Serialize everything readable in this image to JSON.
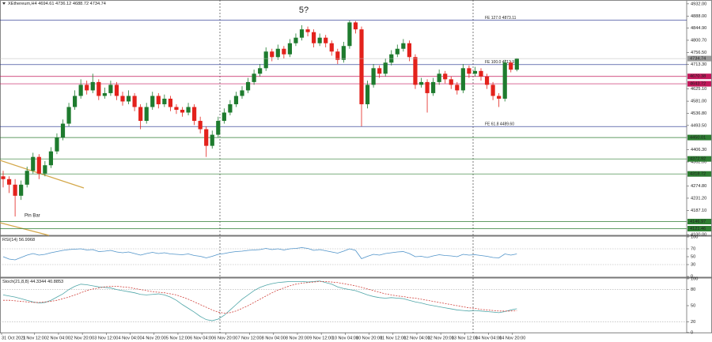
{
  "chart_data": [
    {
      "type": "candlestick",
      "title": "XEthereum,H4",
      "ylim": [
        4100,
        4943
      ],
      "yticks": [
        {
          "value": 4932,
          "label": "4932.00"
        },
        {
          "value": 4888,
          "label": "4888.00"
        },
        {
          "value": 4844.9,
          "label": "4844.90"
        },
        {
          "value": 4800.7,
          "label": "4800.70"
        },
        {
          "value": 4756.5,
          "label": "4756.50"
        },
        {
          "value": 4713.3,
          "label": "4713.30"
        },
        {
          "value": 4625.1,
          "label": "4625.10"
        },
        {
          "value": 4581,
          "label": "4581.00"
        },
        {
          "value": 4536.8,
          "label": "4536.80"
        },
        {
          "value": 4493.5,
          "label": "4493.50"
        },
        {
          "value": 4406.3,
          "label": "4406.30"
        },
        {
          "value": 4362,
          "label": "4362.00"
        },
        {
          "value": 4274.8,
          "label": "4274.80"
        },
        {
          "value": 4231.2,
          "label": "4231.20"
        },
        {
          "value": 4187.1,
          "label": "4187.10"
        },
        {
          "value": 4100,
          "label": "4100.00"
        }
      ],
      "up_color": "#1e7b2e",
      "down_color": "#e3221c",
      "open": [
        4310,
        4300,
        4280,
        4240,
        4280,
        4330,
        4380,
        4320,
        4350,
        4400,
        4450,
        4500,
        4560,
        4600,
        4640,
        4620,
        4650,
        4600,
        4610,
        4640,
        4600,
        4580,
        4600,
        4560,
        4510,
        4560,
        4600,
        4570,
        4590,
        4560,
        4550,
        4540,
        4560,
        4510,
        4480,
        4420,
        4460,
        4510,
        4540,
        4570,
        4600,
        4620,
        4650,
        4680,
        4700,
        4760,
        4740,
        4770,
        4750,
        4790,
        4810,
        4840,
        4830,
        4790,
        4810,
        4790,
        4760,
        4730,
        4780,
        4865,
        4840,
        4570,
        4640,
        4700,
        4680,
        4720,
        4750,
        4770,
        4790,
        4740,
        4640,
        4650,
        4610,
        4650,
        4680,
        4660,
        4640,
        4620,
        4700,
        4680,
        4690,
        4670,
        4640,
        4600,
        4590,
        4720,
        4694.61
      ],
      "high": [
        4330,
        4310,
        4300,
        4295,
        4345,
        4395,
        4390,
        4365,
        4415,
        4465,
        4515,
        4575,
        4620,
        4660,
        4655,
        4680,
        4660,
        4630,
        4655,
        4650,
        4615,
        4620,
        4610,
        4570,
        4575,
        4615,
        4610,
        4605,
        4600,
        4570,
        4560,
        4575,
        4570,
        4525,
        4490,
        4475,
        4525,
        4555,
        4585,
        4615,
        4635,
        4665,
        4695,
        4715,
        4775,
        4770,
        4785,
        4780,
        4805,
        4825,
        4855,
        4850,
        4840,
        4825,
        4820,
        4800,
        4770,
        4795,
        4872,
        4870,
        4850,
        4655,
        4715,
        4710,
        4735,
        4765,
        4785,
        4805,
        4800,
        4750,
        4665,
        4660,
        4665,
        4695,
        4690,
        4670,
        4650,
        4715,
        4710,
        4705,
        4700,
        4680,
        4650,
        4610,
        4730,
        4725,
        4736.12
      ],
      "low": [
        4270,
        4250,
        4165,
        4225,
        4270,
        4320,
        4300,
        4310,
        4340,
        4390,
        4440,
        4490,
        4550,
        4590,
        4605,
        4610,
        4585,
        4590,
        4600,
        4585,
        4565,
        4570,
        4545,
        4480,
        4500,
        4550,
        4555,
        4560,
        4545,
        4535,
        4525,
        4530,
        4495,
        4465,
        4380,
        4410,
        4450,
        4500,
        4530,
        4560,
        4590,
        4610,
        4640,
        4670,
        4690,
        4725,
        4730,
        4735,
        4740,
        4780,
        4800,
        4815,
        4775,
        4780,
        4775,
        4745,
        4715,
        4720,
        4770,
        4825,
        4490,
        4555,
        4630,
        4665,
        4670,
        4710,
        4740,
        4760,
        4725,
        4625,
        4630,
        4540,
        4600,
        4640,
        4645,
        4625,
        4605,
        4610,
        4665,
        4670,
        4655,
        4625,
        4585,
        4560,
        4580,
        4685,
        4688.72
      ],
      "close": [
        4300,
        4280,
        4240,
        4280,
        4330,
        4380,
        4320,
        4350,
        4400,
        4450,
        4500,
        4560,
        4600,
        4640,
        4620,
        4650,
        4600,
        4610,
        4640,
        4600,
        4580,
        4600,
        4560,
        4510,
        4560,
        4600,
        4570,
        4590,
        4560,
        4550,
        4540,
        4560,
        4510,
        4480,
        4420,
        4460,
        4510,
        4540,
        4570,
        4600,
        4620,
        4650,
        4680,
        4700,
        4760,
        4740,
        4770,
        4750,
        4790,
        4810,
        4840,
        4830,
        4790,
        4810,
        4790,
        4760,
        4730,
        4780,
        4865,
        4840,
        4570,
        4640,
        4700,
        4680,
        4720,
        4750,
        4770,
        4790,
        4740,
        4640,
        4650,
        4610,
        4650,
        4680,
        4660,
        4640,
        4620,
        4700,
        4680,
        4690,
        4670,
        4640,
        4600,
        4590,
        4720,
        4694.61,
        4734.74
      ],
      "fib_levels": [
        {
          "value": 4873.11,
          "label": "FE 127.0 4873.11",
          "color": "#1a2a8a"
        },
        {
          "value": 4712.91,
          "label": "FE 100.0 4712.91",
          "color": "#1a2a8a"
        },
        {
          "value": 4489.6,
          "label": "FE 61.8 4489.60",
          "color": "#1a2a8a"
        }
      ],
      "price_levels": [
        {
          "value": 4670.38,
          "color": "#c2185b"
        },
        {
          "value": 4643.72,
          "color": "#c2185b"
        },
        {
          "value": 4450.01,
          "color": "#2e7d32"
        },
        {
          "value": 4372.92,
          "color": "#2e7d32"
        },
        {
          "value": 4318.72,
          "color": "#2e7d32"
        },
        {
          "value": 4146.97,
          "color": "#2e7d32"
        },
        {
          "value": 4121.46,
          "color": "#2e7d32"
        }
      ],
      "annotations": [
        "5?",
        "Pin Bar"
      ],
      "x_labels": [
        "31 Oct 2021",
        "1 Nov 12:00",
        "2 Nov 04:00",
        "2 Nov 20:00",
        "3 Nov 12:00",
        "4 Nov 04:00",
        "4 Nov 20:00",
        "5 Nov 12:00",
        "6 Nov 04:00",
        "6 Nov 20:00",
        "7 Nov 12:00",
        "8 Nov 04:00",
        "8 Nov 20:00",
        "9 Nov 12:00",
        "10 Nov 04:00",
        "10 Nov 20:00",
        "11 Nov 12:00",
        "12 Nov 04:00",
        "12 Nov 20:00",
        "13 Nov 12:00",
        "14 Nov 04:00",
        "14 Nov 20:00"
      ]
    },
    {
      "type": "line",
      "title": "RSI(14)",
      "ylim": [
        0,
        100
      ],
      "yticks": [
        100,
        70,
        50,
        30,
        0
      ],
      "levels": [
        70,
        30
      ],
      "series": [
        {
          "color": "#4f93c9",
          "style": "solid",
          "values": [
            50,
            44,
            42,
            48,
            54,
            58,
            54,
            56,
            60,
            63,
            66,
            68,
            69,
            70,
            67,
            68,
            63,
            64,
            66,
            62,
            60,
            62,
            58,
            54,
            58,
            61,
            58,
            60,
            57,
            56,
            55,
            57,
            53,
            51,
            47,
            51,
            56,
            58,
            61,
            63,
            64,
            66,
            67,
            68,
            71,
            68,
            70,
            67,
            70,
            71,
            73,
            71,
            66,
            68,
            65,
            62,
            59,
            64,
            70,
            66,
            45,
            51,
            56,
            54,
            58,
            60,
            62,
            63,
            58,
            50,
            51,
            48,
            52,
            55,
            53,
            52,
            50,
            56,
            54,
            55,
            53,
            51,
            48,
            47,
            57,
            54,
            56.9968
          ]
        }
      ]
    },
    {
      "type": "line",
      "title": "Stoch(21,8,8)",
      "ylim": [
        0,
        100
      ],
      "yticks": [
        100,
        80,
        50,
        20,
        0
      ],
      "levels": [
        80,
        20
      ],
      "series": [
        {
          "color": "#4fa6a8",
          "style": "solid",
          "values": [
            70,
            68,
            66,
            63,
            60,
            57,
            55,
            56,
            60,
            66,
            72,
            80,
            86,
            90,
            89,
            87,
            85,
            84,
            83,
            80,
            78,
            76,
            74,
            71,
            70,
            71,
            72,
            70,
            66,
            60,
            52,
            45,
            38,
            30,
            24,
            22,
            25,
            32,
            42,
            52,
            62,
            70,
            78,
            84,
            88,
            91,
            93,
            94,
            95,
            95,
            95,
            94,
            95,
            96,
            93,
            90,
            85,
            82,
            80,
            78,
            74,
            70,
            67,
            65,
            64,
            65,
            64,
            63,
            60,
            57,
            55,
            52,
            50,
            48,
            46,
            44,
            42,
            41,
            40,
            41,
            40,
            39,
            38,
            37,
            39,
            42,
            44.3344
          ]
        },
        {
          "color": "#d0403a",
          "style": "dashed",
          "values": [
            60,
            60,
            59,
            58,
            57,
            56,
            56,
            57,
            58,
            60,
            63,
            66,
            70,
            74,
            78,
            81,
            83,
            85,
            86,
            86,
            85,
            84,
            82,
            80,
            78,
            76,
            75,
            74,
            72,
            70,
            66,
            62,
            57,
            52,
            47,
            42,
            38,
            36,
            37,
            40,
            45,
            50,
            56,
            62,
            68,
            74,
            79,
            83,
            87,
            90,
            92,
            93,
            94,
            95,
            95,
            94,
            93,
            91,
            89,
            87,
            84,
            81,
            78,
            75,
            72,
            70,
            68,
            67,
            65,
            64,
            62,
            60,
            58,
            56,
            54,
            52,
            50,
            48,
            46,
            45,
            43,
            42,
            41,
            40,
            40,
            40,
            40.8853
          ]
        }
      ]
    }
  ]
}
